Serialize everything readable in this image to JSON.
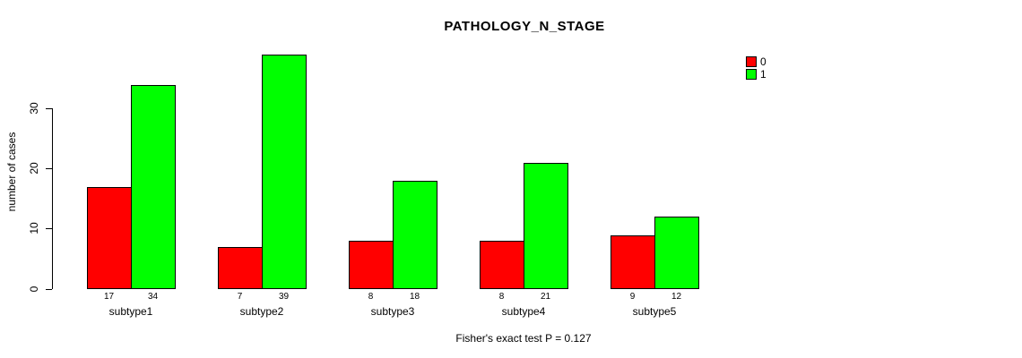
{
  "chart_data": {
    "type": "bar",
    "title": "PATHOLOGY_N_STAGE",
    "categories": [
      "subtype1",
      "subtype2",
      "subtype3",
      "subtype4",
      "subtype5"
    ],
    "series": [
      {
        "name": "0",
        "color": "#ff0000",
        "values": [
          17,
          7,
          8,
          8,
          9
        ]
      },
      {
        "name": "1",
        "color": "#00ff00",
        "values": [
          34,
          39,
          18,
          21,
          12
        ]
      }
    ],
    "bar_value_labels": [
      [
        "17",
        "34"
      ],
      [
        "7",
        "39"
      ],
      [
        "8",
        "18"
      ],
      [
        "8",
        "21"
      ],
      [
        "9",
        "12"
      ]
    ],
    "xlabel": "",
    "ylabel": "number of cases",
    "yticks": [
      "0",
      "10",
      "20",
      "30"
    ],
    "ylim": [
      0,
      39
    ],
    "grid": false,
    "legend_position": "top-right",
    "annotation": "Fisher's exact test P = 0.127"
  }
}
